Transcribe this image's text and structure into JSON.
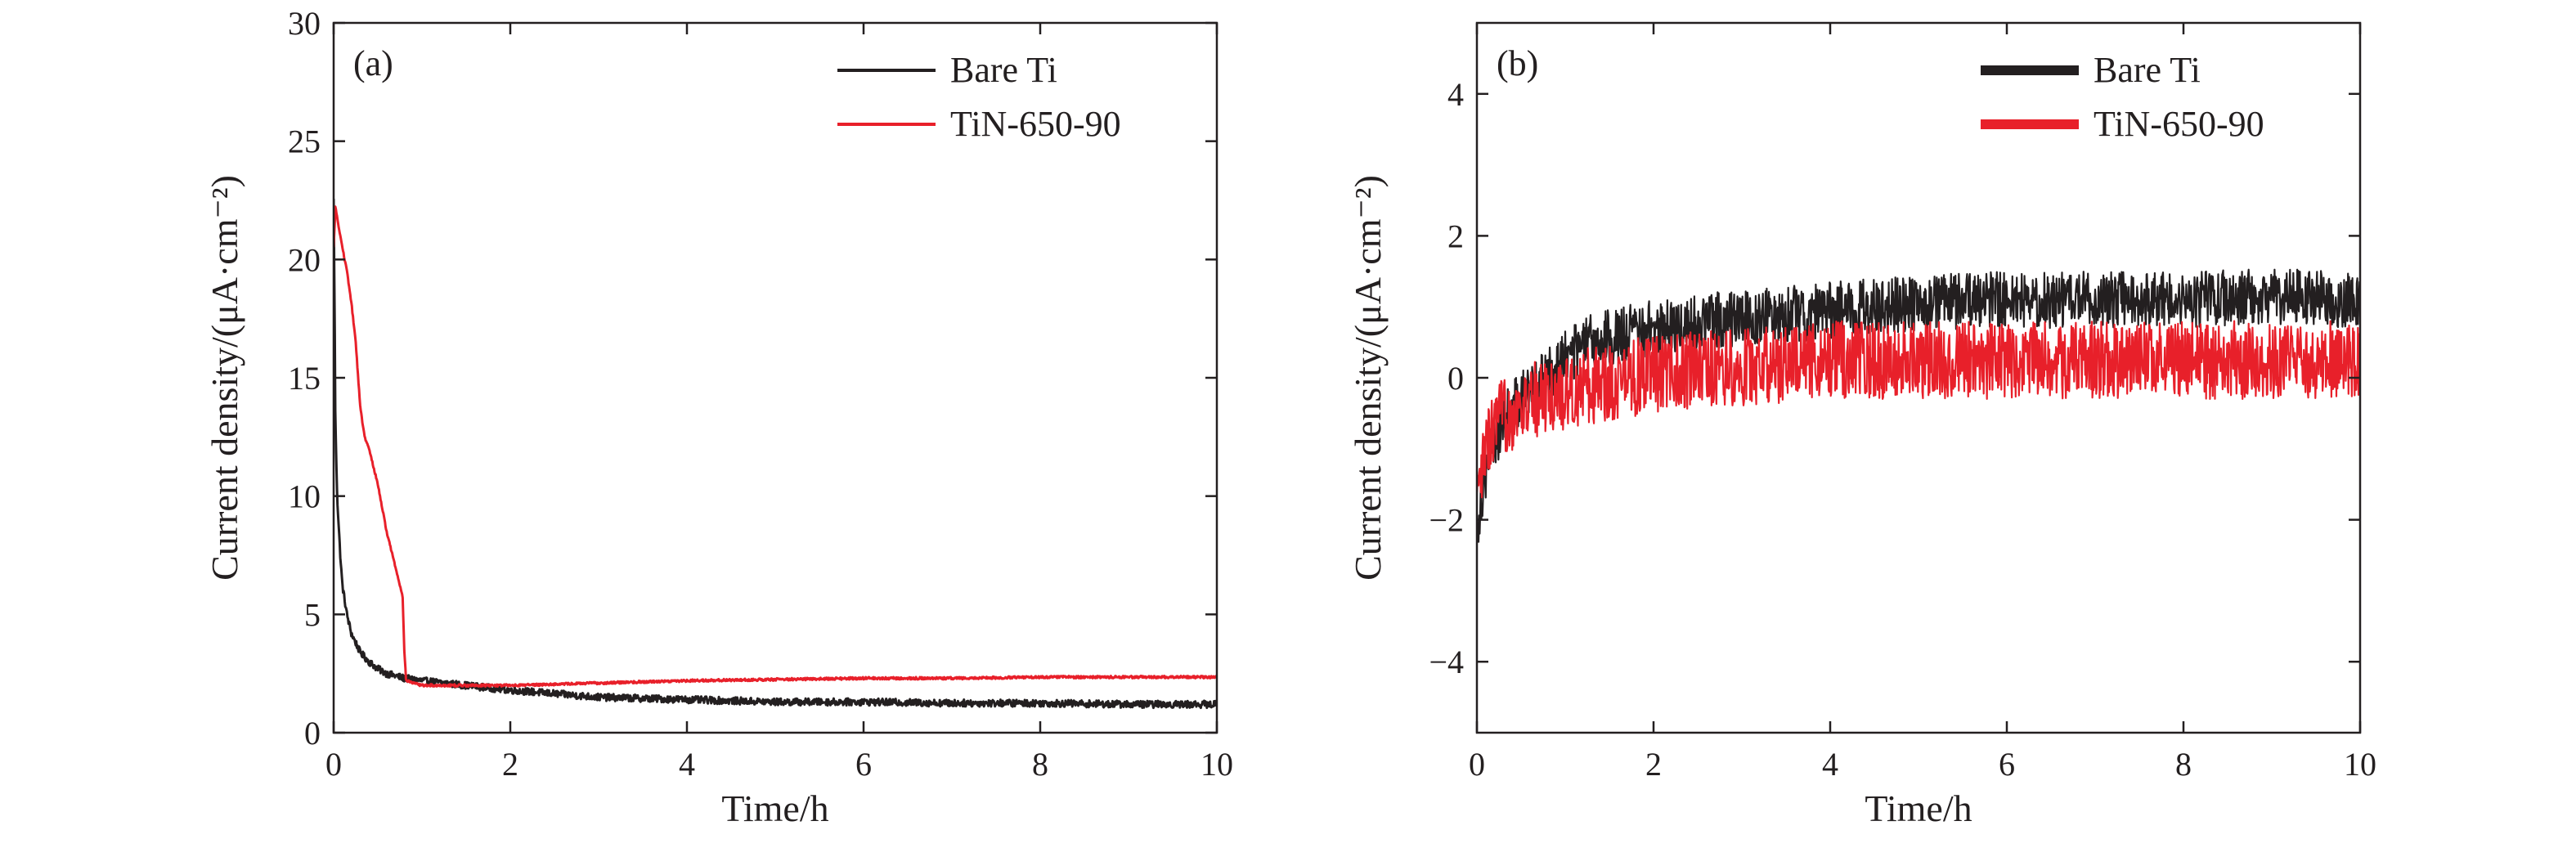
{
  "chart_data": [
    {
      "type": "line",
      "panel_label": "(a)",
      "xlabel": "Time/h",
      "ylabel": "Current density/(μA·cm⁻²)",
      "xlim": [
        0,
        10
      ],
      "ylim": [
        0,
        30
      ],
      "xticks": [
        0,
        2,
        4,
        6,
        8,
        10
      ],
      "yticks": [
        0,
        5,
        10,
        15,
        20,
        25,
        30
      ],
      "xtick_labels": [
        "0",
        "2",
        "4",
        "6",
        "8",
        "10"
      ],
      "ytick_labels": [
        "0",
        "5",
        "10",
        "15",
        "20",
        "25",
        "30"
      ],
      "legend_position": "top-right",
      "grid": false,
      "series": [
        {
          "name": "Bare Ti",
          "color": "#231f20",
          "noise": 0.15,
          "x": [
            0,
            0.01,
            0.02,
            0.04,
            0.06,
            0.08,
            0.1,
            0.15,
            0.2,
            0.3,
            0.4,
            0.5,
            0.6,
            0.8,
            1.0,
            1.5,
            2,
            3,
            4,
            5,
            6,
            7,
            8,
            9,
            10
          ],
          "y": [
            22.5,
            18,
            13,
            10,
            8.5,
            7.2,
            6.2,
            5,
            4.2,
            3.4,
            3.0,
            2.7,
            2.5,
            2.3,
            2.2,
            2.0,
            1.8,
            1.5,
            1.4,
            1.3,
            1.3,
            1.25,
            1.25,
            1.2,
            1.2
          ]
        },
        {
          "name": "TiN-650-90",
          "color": "#e8202a",
          "noise": 0.05,
          "x": [
            0,
            0.02,
            0.05,
            0.1,
            0.15,
            0.2,
            0.25,
            0.3,
            0.35,
            0.4,
            0.5,
            0.6,
            0.7,
            0.78,
            0.8,
            0.82,
            0.9,
            1.0,
            1.5,
            2,
            3,
            4,
            5,
            6,
            7,
            8,
            9,
            10
          ],
          "y": [
            20.5,
            22.3,
            21.5,
            20.5,
            19.5,
            18.2,
            16.5,
            13.8,
            12.5,
            12,
            10.5,
            8.5,
            7,
            5.8,
            3.5,
            2.2,
            2.1,
            2.0,
            2.0,
            2.0,
            2.1,
            2.2,
            2.25,
            2.3,
            2.3,
            2.35,
            2.35,
            2.35
          ]
        }
      ]
    },
    {
      "type": "line",
      "panel_label": "(b)",
      "xlabel": "Time/h",
      "ylabel": "Current density/(μA·cm⁻²)",
      "xlim": [
        0,
        10
      ],
      "ylim": [
        -5,
        5
      ],
      "xticks": [
        0,
        2,
        4,
        6,
        8,
        10
      ],
      "yticks": [
        -4,
        -2,
        0,
        2,
        4
      ],
      "xtick_labels": [
        "0",
        "2",
        "4",
        "6",
        "8",
        "10"
      ],
      "ytick_labels": [
        "−4",
        "−2",
        "0",
        "2",
        "4"
      ],
      "legend_position": "top-right",
      "grid": false,
      "series": [
        {
          "name": "Bare Ti",
          "color": "#231f20",
          "noise": 0.4,
          "x": [
            0,
            0.05,
            0.1,
            0.2,
            0.3,
            0.5,
            0.7,
            1.0,
            1.3,
            1.6,
            2.0,
            2.4,
            2.6,
            3.0,
            3.5,
            4.0,
            4.5,
            5,
            6,
            7,
            8,
            9,
            10
          ],
          "y": [
            -2.1,
            -1.7,
            -1.3,
            -0.9,
            -0.6,
            -0.3,
            -0.1,
            0.3,
            0.5,
            0.6,
            0.7,
            0.75,
            0.8,
            0.85,
            0.9,
            0.95,
            1.0,
            1.05,
            1.1,
            1.1,
            1.1,
            1.15,
            1.1
          ]
        },
        {
          "name": "TiN-650-90",
          "color": "#e8202a",
          "noise": 0.55,
          "x": [
            0,
            0.05,
            0.1,
            0.2,
            0.3,
            0.5,
            0.7,
            1.0,
            1.5,
            2.0,
            3.0,
            4.0,
            5,
            6,
            7,
            8,
            9,
            10
          ],
          "y": [
            -1.9,
            -1.4,
            -1.0,
            -0.7,
            -0.55,
            -0.4,
            -0.3,
            -0.2,
            -0.05,
            0.05,
            0.15,
            0.25,
            0.25,
            0.25,
            0.25,
            0.25,
            0.25,
            0.25
          ]
        }
      ]
    }
  ]
}
